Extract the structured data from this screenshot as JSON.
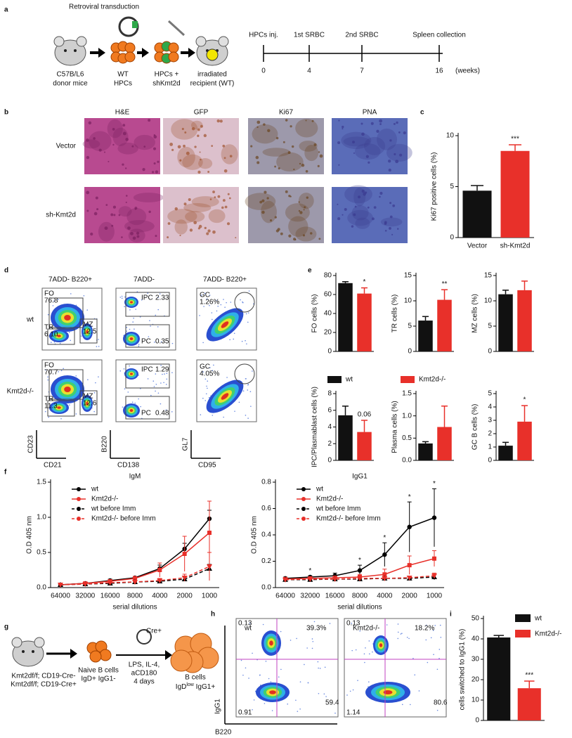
{
  "panel_letters": [
    "a",
    "b",
    "c",
    "d",
    "e",
    "f",
    "g",
    "h",
    "i"
  ],
  "panel_a": {
    "transduction": "Retroviral transduction",
    "steps": [
      [
        "C57B/L6",
        "donor mice"
      ],
      [
        "WT",
        "HPCs"
      ],
      [
        "HPCs +",
        "shKmt2d"
      ],
      [
        "irradiated",
        "recipient (WT)"
      ]
    ],
    "timeline": [
      {
        "event": "HPCs inj.",
        "week": "0"
      },
      {
        "event": "1st SRBC",
        "week": "4"
      },
      {
        "event": "2nd SRBC",
        "week": "7"
      },
      {
        "event": "Spleen collection",
        "week": "16"
      }
    ],
    "timeline_unit": "(weeks)"
  },
  "panel_b": {
    "columns": [
      "H&E",
      "GFP",
      "Ki67",
      "PNA"
    ],
    "rows": [
      "Vector",
      "sh-Kmt2d"
    ]
  },
  "panel_d": {
    "columns": [
      "7ADD- B220+",
      "7ADD-",
      "7ADD- B220+"
    ],
    "rows": [
      "wt",
      "Kmt2d-/-"
    ],
    "plots": [
      [
        {
          "gates": [
            {
              "name": "FO",
              "value": "76.8"
            },
            {
              "name": "TR",
              "value": "6.10"
            },
            {
              "name": "MZ",
              "value": "12.5"
            }
          ]
        },
        {
          "gates": [
            {
              "name": "IPC",
              "value": "2.33"
            },
            {
              "name": "PC",
              "value": "0.35"
            }
          ]
        },
        {
          "gates": [
            {
              "name": "GC",
              "value": "1.26%"
            }
          ]
        }
      ],
      [
        {
          "gates": [
            {
              "name": "FO",
              "value": "70.7"
            },
            {
              "name": "TR",
              "value": "11.3"
            },
            {
              "name": "MZ",
              "value": "12.6"
            }
          ]
        },
        {
          "gates": [
            {
              "name": "IPC",
              "value": "1.29"
            },
            {
              "name": "PC",
              "value": "0.48"
            }
          ]
        },
        {
          "gates": [
            {
              "name": "GC",
              "value": "4.05%"
            }
          ]
        }
      ]
    ],
    "axes": [
      [
        "CD23",
        "CD21"
      ],
      [
        "B220",
        "CD138"
      ],
      [
        "GL7",
        "CD95"
      ]
    ]
  },
  "panel_e_legend": [
    {
      "name": "wt",
      "color": "#111111"
    },
    {
      "name": "Kmt2d-/-",
      "color": "#e8302a"
    }
  ],
  "panel_g": {
    "genotypes": [
      "Kmt2df/f; CD19-Cre-",
      "Kmt2df/f; CD19-Cre+"
    ],
    "naive": [
      "Naive B cells",
      "IgD+ IgG1-"
    ],
    "plasmid": "Cre+",
    "treatment": [
      "LPS, IL-4,",
      "aCD180",
      "4 days"
    ],
    "result": "B cells",
    "result_marker": [
      "IgD",
      "low",
      " IgG1+"
    ]
  },
  "panel_h": {
    "plots": [
      {
        "label": "wt",
        "percent": "39.3%",
        "corners": [
          "0.13",
          "0.91",
          "59.4"
        ]
      },
      {
        "label": "Kmt2d-/-",
        "percent": "18.2%",
        "corners": [
          "0.13",
          "1.14",
          "80.6"
        ]
      }
    ],
    "y_label": "IgG1",
    "x_label": "B220"
  },
  "chart_data": [
    {
      "type": "bar",
      "y_label": "Ki67 positive cells (%)",
      "categories": [
        "Vector",
        "sh-Kmt2d"
      ],
      "values": [
        4.6,
        8.5
      ],
      "errors": [
        0.5,
        0.6
      ],
      "colors": [
        "#111111",
        "#e8302a"
      ],
      "ylim": [
        0,
        10
      ],
      "yticks": [
        0,
        5,
        10
      ],
      "annotations": [
        null,
        "***"
      ]
    },
    {
      "type": "bar",
      "y_label": "FO cells (%)",
      "values": [
        72,
        61
      ],
      "errors": [
        1.5,
        6
      ],
      "colors": [
        "#111111",
        "#e8302a"
      ],
      "ylim": [
        0,
        80
      ],
      "yticks": [
        0,
        20,
        40,
        60,
        80
      ],
      "annotations": [
        null,
        "*"
      ]
    },
    {
      "type": "bar",
      "y_label": "TR cells (%)",
      "values": [
        6.1,
        10.2
      ],
      "errors": [
        0.8,
        2
      ],
      "colors": [
        "#111111",
        "#e8302a"
      ],
      "ylim": [
        0,
        15
      ],
      "yticks": [
        0,
        5,
        10,
        15
      ],
      "annotations": [
        null,
        "**"
      ]
    },
    {
      "type": "bar",
      "y_label": "MZ cells (%)",
      "values": [
        11.3,
        12.1
      ],
      "errors": [
        0.8,
        1.8
      ],
      "colors": [
        "#111111",
        "#e8302a"
      ],
      "ylim": [
        0,
        15
      ],
      "yticks": [
        0,
        5,
        10,
        15
      ]
    },
    {
      "type": "bar",
      "y_label": "IPC/Plasmablast cells (%)",
      "values": [
        5.4,
        3.4
      ],
      "errors": [
        1.1,
        1.4
      ],
      "colors": [
        "#111111",
        "#e8302a"
      ],
      "ylim": [
        0,
        8
      ],
      "yticks": [
        0,
        2,
        4,
        6,
        8
      ],
      "annotations": [
        null,
        "0.06"
      ]
    },
    {
      "type": "bar",
      "y_label": "Plasma cells (%)",
      "values": [
        0.38,
        0.75
      ],
      "errors": [
        0.04,
        0.47
      ],
      "colors": [
        "#111111",
        "#e8302a"
      ],
      "ylim": [
        0,
        1.5
      ],
      "yticks": [
        {
          "value": 0,
          "label": "0.0"
        },
        0.5,
        {
          "value": 1,
          "label": "1.0"
        },
        1.5
      ]
    },
    {
      "type": "bar",
      "y_label": "GC B cells (%)",
      "values": [
        1.1,
        2.9
      ],
      "errors": [
        0.25,
        1.2
      ],
      "colors": [
        "#111111",
        "#e8302a"
      ],
      "ylim": [
        0,
        5
      ],
      "yticks": [
        0,
        1,
        2,
        3,
        4,
        5
      ],
      "annotations": [
        null,
        "*"
      ]
    },
    {
      "type": "line",
      "title": "IgM",
      "x_label": "serial dilutions",
      "y_label": "O.D 405 nm",
      "categories": [
        "64000",
        "32000",
        "16000",
        "8000",
        "4000",
        "2000",
        "1000"
      ],
      "ylim": [
        0,
        1.5
      ],
      "yticks": [
        {
          "value": 0,
          "label": "0.0"
        },
        0.5,
        {
          "value": 1,
          "label": "1.0"
        },
        1.5
      ],
      "series": [
        {
          "name": "wt",
          "color": "#000000",
          "marker": "circle",
          "dash": false,
          "values": [
            0.04,
            0.06,
            0.1,
            0.14,
            0.27,
            0.55,
            0.98
          ],
          "errors": [
            0.01,
            0.01,
            0.02,
            0.02,
            0.05,
            0.08,
            0.12
          ]
        },
        {
          "name": "Kmt2d-/-",
          "color": "#e8302a",
          "marker": "square",
          "dash": false,
          "values": [
            0.04,
            0.06,
            0.09,
            0.13,
            0.25,
            0.48,
            0.78
          ],
          "errors": [
            0.01,
            0.01,
            0.02,
            0.03,
            0.1,
            0.25,
            0.45
          ]
        },
        {
          "name": "wt before Imm",
          "color": "#000000",
          "marker": "triangle",
          "dash": true,
          "values": [
            0.04,
            0.05,
            0.06,
            0.08,
            0.09,
            0.12,
            0.27
          ],
          "errors": [
            0.01,
            0.01,
            0.01,
            0.01,
            0.02,
            0.03,
            0.06
          ]
        },
        {
          "name": "Kmt2d-/- before Imm",
          "color": "#e8302a",
          "marker": "triangle-down",
          "dash": true,
          "values": [
            0.04,
            0.05,
            0.07,
            0.08,
            0.1,
            0.14,
            0.3
          ],
          "errors": [
            0.01,
            0.01,
            0.01,
            0.02,
            0.03,
            0.05,
            0.2
          ]
        }
      ]
    },
    {
      "type": "line",
      "title": "IgG1",
      "x_label": "serial dilutions",
      "y_label": "O.D 405 nm",
      "categories": [
        "64000",
        "32000",
        "16000",
        "8000",
        "4000",
        "2000",
        "1000"
      ],
      "ylim": [
        0,
        0.8
      ],
      "yticks": [
        {
          "value": 0,
          "label": "0.0"
        },
        0.2,
        0.4,
        0.6,
        0.8
      ],
      "annotations": [
        null,
        "*",
        null,
        "*",
        "*",
        "*",
        "*"
      ],
      "series": [
        {
          "name": "wt",
          "color": "#000000",
          "marker": "circle",
          "dash": false,
          "values": [
            0.07,
            0.08,
            0.09,
            0.13,
            0.25,
            0.46,
            0.53
          ],
          "errors": [
            0.01,
            0.01,
            0.02,
            0.04,
            0.09,
            0.19,
            0.22
          ]
        },
        {
          "name": "Kmt2d-/-",
          "color": "#e8302a",
          "marker": "square",
          "dash": false,
          "values": [
            0.065,
            0.07,
            0.075,
            0.08,
            0.1,
            0.17,
            0.22
          ],
          "errors": [
            0.01,
            0.01,
            0.01,
            0.02,
            0.04,
            0.07,
            0.06
          ]
        },
        {
          "name": "wt before Imm",
          "color": "#000000",
          "marker": "triangle",
          "dash": true,
          "values": [
            0.06,
            0.06,
            0.065,
            0.065,
            0.07,
            0.07,
            0.08
          ],
          "errors": [
            0.01,
            0.01,
            0.01,
            0.01,
            0.01,
            0.01,
            0.02
          ]
        },
        {
          "name": "Kmt2d-/- before Imm",
          "color": "#e8302a",
          "marker": "triangle-down",
          "dash": true,
          "values": [
            0.06,
            0.065,
            0.065,
            0.07,
            0.07,
            0.075,
            0.09
          ],
          "errors": [
            0.01,
            0.01,
            0.01,
            0.01,
            0.01,
            0.01,
            0.02
          ]
        }
      ]
    },
    {
      "type": "bar",
      "y_label": "cells switched to IgG1 (%)",
      "values": [
        40.7,
        15.8
      ],
      "errors": [
        1,
        3.5
      ],
      "colors": [
        "#111111",
        "#e8302a"
      ],
      "ylim": [
        0,
        50
      ],
      "yticks": [
        0,
        10,
        20,
        30,
        40,
        50
      ],
      "annotations": [
        null,
        "***"
      ],
      "legend": [
        {
          "name": "wt"
        },
        {
          "name": "Kmt2d-/-"
        }
      ]
    }
  ]
}
